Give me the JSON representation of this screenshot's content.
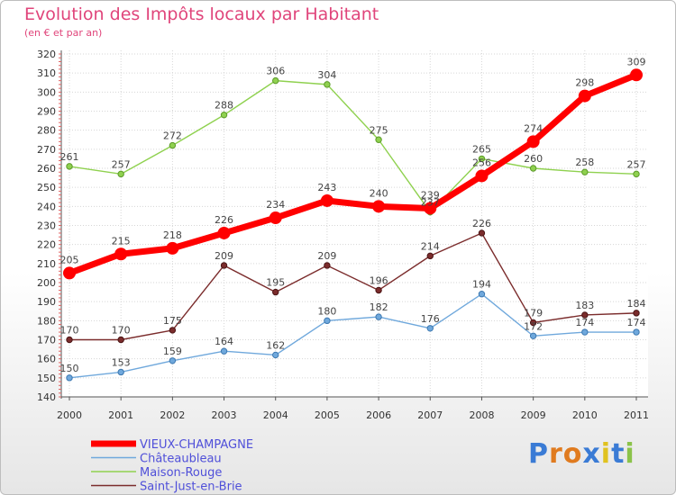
{
  "title": "Evolution des Impôts locaux par Habitant",
  "subtitle": "(en € et par an)",
  "logo_text": "Proxiti",
  "chart_data": {
    "type": "line",
    "x": [
      "2000",
      "2001",
      "2002",
      "2003",
      "2004",
      "2005",
      "2006",
      "2007",
      "2008",
      "2009",
      "2010",
      "2011"
    ],
    "ylim": [
      140,
      320
    ],
    "yticks": [
      140,
      150,
      160,
      170,
      180,
      190,
      200,
      210,
      220,
      230,
      240,
      250,
      260,
      270,
      280,
      290,
      300,
      310,
      320
    ],
    "grid": true,
    "legend_position": "bottom-left",
    "series": [
      {
        "name": "VIEUX-CHAMPAGNE",
        "color": "#ff0000",
        "values": [
          205,
          215,
          218,
          226,
          234,
          243,
          240,
          239,
          256,
          274,
          298,
          309
        ],
        "labels": [
          "205",
          "215",
          "218",
          "226",
          "234",
          "243",
          "240",
          "239",
          "256",
          "274",
          "298",
          "309"
        ]
      },
      {
        "name": "Châteaubleau",
        "color": "#6fa8dc",
        "values": [
          150,
          153,
          159,
          164,
          162,
          180,
          182,
          176,
          194,
          172,
          174,
          174
        ],
        "labels": [
          "150",
          "153",
          "159",
          "164",
          "162",
          "180",
          "182",
          "176",
          "194",
          "172",
          "174",
          "174"
        ]
      },
      {
        "name": "Maison-Rouge",
        "color": "#8fd14f",
        "values": [
          261,
          257,
          272,
          288,
          306,
          304,
          275,
          237,
          265,
          260,
          258,
          257
        ],
        "labels": [
          "261",
          "257",
          "272",
          "288",
          "306",
          "304",
          "275",
          "237",
          "265",
          "260",
          "258",
          "257"
        ]
      },
      {
        "name": "Saint-Just-en-Brie",
        "color": "#7b2c2c",
        "values": [
          170,
          170,
          175,
          209,
          195,
          209,
          196,
          214,
          226,
          179,
          183,
          184
        ],
        "labels": [
          "170",
          "170",
          "175",
          "209",
          "195",
          "209",
          "196",
          "214",
          "226",
          "179",
          "183",
          "184"
        ]
      }
    ]
  }
}
